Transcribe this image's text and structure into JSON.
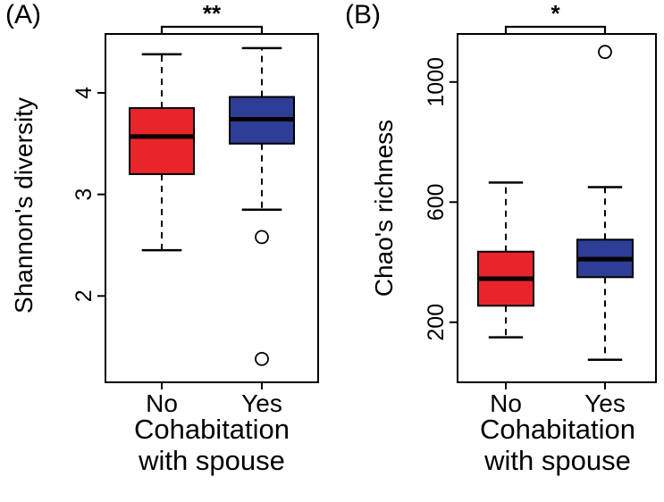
{
  "figure": {
    "background": "#ffffff"
  },
  "chart_data": [
    {
      "type": "boxplot",
      "panel_label": "(A)",
      "ylabel": "Shannon's diversity",
      "xlabel_lines": [
        "Cohabitation",
        "with spouse"
      ],
      "categories": [
        "No",
        "Yes"
      ],
      "significance": "**",
      "ylim": [
        1.15,
        4.58
      ],
      "yticks": [
        2,
        3,
        4
      ],
      "grid": false,
      "series": [
        {
          "name": "No",
          "color": "#e9252c",
          "q1": 3.2,
          "median": 3.57,
          "q3": 3.85,
          "whisker_low": 2.45,
          "whisker_high": 4.38,
          "outliers": []
        },
        {
          "name": "Yes",
          "color": "#2e3d96",
          "q1": 3.5,
          "median": 3.74,
          "q3": 3.96,
          "whisker_low": 2.85,
          "whisker_high": 4.44,
          "outliers": [
            2.58,
            1.38
          ]
        }
      ]
    },
    {
      "type": "boxplot",
      "panel_label": "(B)",
      "ylabel": "Chao's richness",
      "xlabel_lines": [
        "Cohabitation",
        "with spouse"
      ],
      "categories": [
        "No",
        "Yes"
      ],
      "significance": "*",
      "ylim": [
        0,
        1160
      ],
      "yticks": [
        200,
        600,
        1000
      ],
      "grid": false,
      "series": [
        {
          "name": "No",
          "color": "#e9252c",
          "q1": 255,
          "median": 345,
          "q3": 435,
          "whisker_low": 150,
          "whisker_high": 665,
          "outliers": []
        },
        {
          "name": "Yes",
          "color": "#2e3d96",
          "q1": 350,
          "median": 410,
          "q3": 475,
          "whisker_low": 75,
          "whisker_high": 650,
          "outliers": [
            1100
          ]
        }
      ]
    }
  ]
}
